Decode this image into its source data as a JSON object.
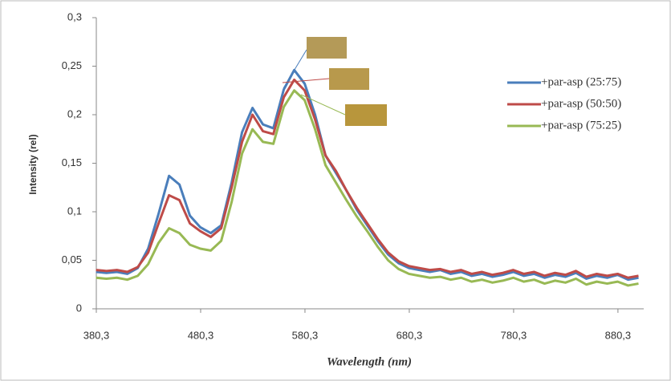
{
  "chart_data": {
    "type": "line",
    "x_label": "Wavelength (nm)",
    "y_label": "Intensity (rel)",
    "x": [
      380,
      390,
      400,
      410,
      420,
      430,
      440,
      450,
      460,
      470,
      480,
      490,
      500,
      510,
      520,
      530,
      540,
      550,
      560,
      570,
      580,
      590,
      600,
      610,
      620,
      630,
      640,
      650,
      660,
      670,
      680,
      690,
      700,
      710,
      720,
      730,
      740,
      750,
      760,
      770,
      780,
      790,
      800,
      810,
      820,
      830,
      840,
      850,
      860,
      870,
      880,
      890,
      900
    ],
    "series": [
      {
        "name": "+par-asp (25:75)",
        "color": "#4a7ebb",
        "values": [
          0.038,
          0.037,
          0.038,
          0.036,
          0.042,
          0.062,
          0.098,
          0.137,
          0.128,
          0.096,
          0.084,
          0.078,
          0.086,
          0.13,
          0.182,
          0.207,
          0.19,
          0.186,
          0.226,
          0.246,
          0.232,
          0.2,
          0.158,
          0.14,
          0.122,
          0.102,
          0.086,
          0.07,
          0.056,
          0.047,
          0.042,
          0.04,
          0.038,
          0.04,
          0.036,
          0.038,
          0.034,
          0.036,
          0.033,
          0.035,
          0.038,
          0.034,
          0.036,
          0.032,
          0.035,
          0.033,
          0.037,
          0.031,
          0.034,
          0.032,
          0.035,
          0.03,
          0.032
        ]
      },
      {
        "name": "+par-asp (50:50)",
        "color": "#be4b48",
        "values": [
          0.04,
          0.039,
          0.04,
          0.038,
          0.043,
          0.058,
          0.088,
          0.117,
          0.112,
          0.088,
          0.08,
          0.074,
          0.083,
          0.125,
          0.172,
          0.2,
          0.183,
          0.18,
          0.218,
          0.236,
          0.225,
          0.195,
          0.158,
          0.142,
          0.122,
          0.104,
          0.088,
          0.072,
          0.058,
          0.049,
          0.044,
          0.042,
          0.04,
          0.041,
          0.038,
          0.04,
          0.036,
          0.038,
          0.035,
          0.037,
          0.04,
          0.036,
          0.038,
          0.034,
          0.037,
          0.035,
          0.039,
          0.033,
          0.036,
          0.034,
          0.036,
          0.032,
          0.034
        ]
      },
      {
        "name": "+par-asp (75:25)",
        "color": "#98b954",
        "values": [
          0.032,
          0.031,
          0.032,
          0.03,
          0.034,
          0.046,
          0.068,
          0.083,
          0.078,
          0.066,
          0.062,
          0.06,
          0.07,
          0.11,
          0.16,
          0.185,
          0.172,
          0.17,
          0.208,
          0.225,
          0.215,
          0.185,
          0.148,
          0.13,
          0.112,
          0.095,
          0.08,
          0.064,
          0.05,
          0.041,
          0.036,
          0.034,
          0.032,
          0.033,
          0.03,
          0.032,
          0.028,
          0.03,
          0.027,
          0.029,
          0.032,
          0.028,
          0.03,
          0.026,
          0.029,
          0.027,
          0.031,
          0.025,
          0.028,
          0.026,
          0.028,
          0.024,
          0.026
        ]
      }
    ],
    "xlim": [
      380.3,
      905
    ],
    "xticks": [
      {
        "value": 380.3,
        "label": "380,3"
      },
      {
        "value": 480.3,
        "label": "480,3"
      },
      {
        "value": 580.3,
        "label": "580,3"
      },
      {
        "value": 680.3,
        "label": "680,3"
      },
      {
        "value": 780.3,
        "label": "780,3"
      },
      {
        "value": 880.3,
        "label": "880,3"
      }
    ],
    "ylim": [
      0,
      0.3
    ],
    "yticks": [
      0,
      {
        "value": 0.05,
        "label": "0,05"
      },
      {
        "value": 0.1,
        "label": "0,1"
      },
      {
        "value": 0.15,
        "label": "0,15"
      },
      {
        "value": 0.2,
        "label": "0,2"
      },
      {
        "value": 0.25,
        "label": "0,25"
      },
      {
        "value": 0.3,
        "label": "0,3"
      }
    ],
    "grid": false,
    "legend": "right"
  }
}
